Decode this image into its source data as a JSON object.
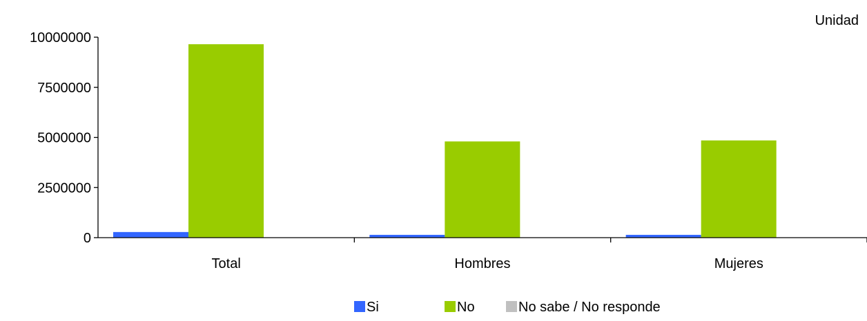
{
  "chart_data": {
    "type": "bar",
    "unit_label": "Unidad",
    "categories": [
      "Total",
      "Hombres",
      "Mujeres"
    ],
    "series": [
      {
        "name": "Si",
        "color": "#3366FF",
        "values": [
          280000,
          140000,
          140000
        ]
      },
      {
        "name": "No",
        "color": "#99CC00",
        "values": [
          9650000,
          4800000,
          4850000
        ]
      },
      {
        "name": "No sabe / No responde",
        "color": "#C0C0C0",
        "values": [
          0,
          0,
          0
        ]
      }
    ],
    "ylim": [
      0,
      10000000
    ],
    "yticks": [
      0,
      2500000,
      5000000,
      7500000,
      10000000
    ],
    "grid": false,
    "legend_position": "bottom"
  }
}
